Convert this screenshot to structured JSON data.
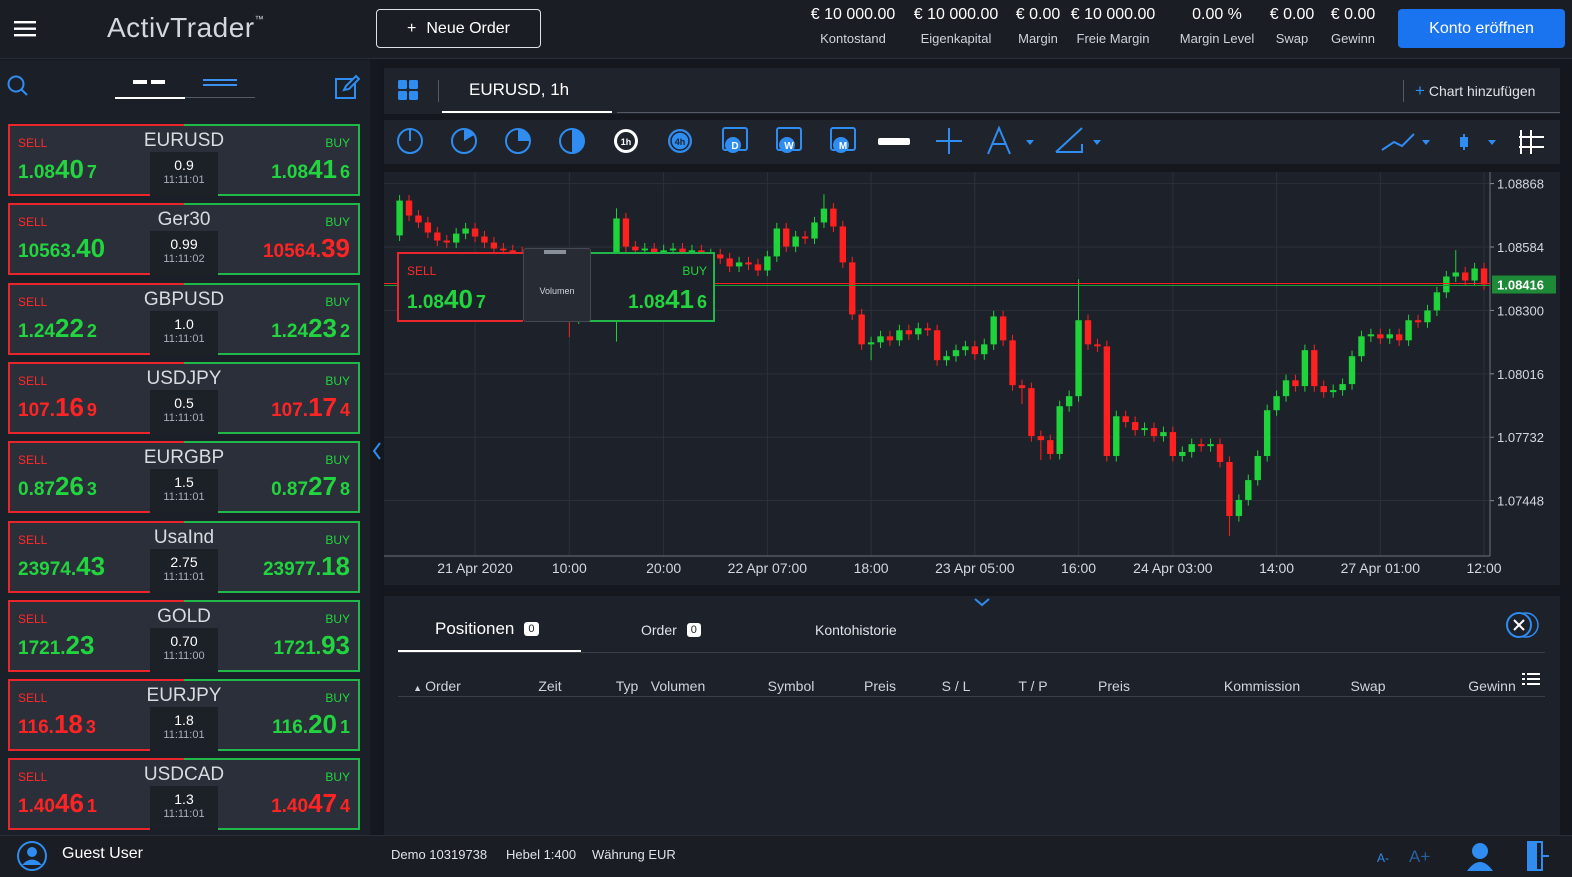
{
  "header": {
    "logo": "ActivTrader",
    "logo_tm": "™",
    "new_order_icon": "+",
    "new_order": "Neue Order",
    "stats": [
      {
        "value": "€ 10 000.00",
        "label": "Kontostand"
      },
      {
        "value": "€ 10 000.00",
        "label": "Eigenkapital"
      },
      {
        "value": "€ 0.00",
        "label": "Margin"
      },
      {
        "value": "€ 10 000.00",
        "label": "Freie Margin"
      },
      {
        "value": "0.00 %",
        "label": "Margin Level"
      },
      {
        "value": "€ 0.00",
        "label": "Swap"
      },
      {
        "value": "€ 0.00",
        "label": "Gewinn"
      }
    ],
    "open_account": "Konto eröffnen"
  },
  "watchlist": {
    "sell_label": "SELL",
    "buy_label": "BUY",
    "colors": {
      "up": "#22d43e",
      "down": "#ff2424"
    },
    "instruments": [
      {
        "symbol": "EURUSD",
        "spread": "0.9",
        "time": "11:11:01",
        "sell": [
          "1.08",
          "40",
          "7"
        ],
        "sell_dir": "up",
        "buy": [
          "1.08",
          "41",
          "6"
        ],
        "buy_dir": "up"
      },
      {
        "symbol": "Ger30",
        "spread": "0.99",
        "time": "11:11:02",
        "sell": [
          "10563.",
          "40"
        ],
        "sell_dir": "up",
        "buy": [
          "10564.",
          "39"
        ],
        "buy_dir": "down"
      },
      {
        "symbol": "GBPUSD",
        "spread": "1.0",
        "time": "11:11:01",
        "sell": [
          "1.24",
          "22",
          "2"
        ],
        "sell_dir": "up",
        "buy": [
          "1.24",
          "23",
          "2"
        ],
        "buy_dir": "up"
      },
      {
        "symbol": "USDJPY",
        "spread": "0.5",
        "time": "11:11:01",
        "sell": [
          "107.",
          "16",
          "9"
        ],
        "sell_dir": "down",
        "buy": [
          "107.",
          "17",
          "4"
        ],
        "buy_dir": "down"
      },
      {
        "symbol": "EURGBP",
        "spread": "1.5",
        "time": "11:11:01",
        "sell": [
          "0.87",
          "26",
          "3"
        ],
        "sell_dir": "up",
        "buy": [
          "0.87",
          "27",
          "8"
        ],
        "buy_dir": "up"
      },
      {
        "symbol": "UsaInd",
        "spread": "2.75",
        "time": "11:11:01",
        "sell": [
          "23974.",
          "43"
        ],
        "sell_dir": "up",
        "buy": [
          "23977.",
          "18"
        ],
        "buy_dir": "up"
      },
      {
        "symbol": "GOLD",
        "spread": "0.70",
        "time": "11:11:00",
        "sell": [
          "1721.",
          "23"
        ],
        "sell_dir": "up",
        "buy": [
          "1721.",
          "93"
        ],
        "buy_dir": "up"
      },
      {
        "symbol": "EURJPY",
        "spread": "1.8",
        "time": "11:11:01",
        "sell": [
          "116.",
          "18",
          "3"
        ],
        "sell_dir": "down",
        "buy": [
          "116.",
          "20",
          "1"
        ],
        "buy_dir": "up"
      },
      {
        "symbol": "USDCAD",
        "spread": "1.3",
        "time": "11:11:01",
        "sell": [
          "1.40",
          "46",
          "1"
        ],
        "sell_dir": "down",
        "buy": [
          "1.40",
          "47",
          "4"
        ],
        "buy_dir": "down"
      }
    ]
  },
  "chart_panel": {
    "tab": "EURUSD, 1h",
    "add_chart_icon": "+",
    "add_chart": "Chart hinzufügen",
    "toolbar_labels": [
      "1h",
      "4h",
      "D",
      "W",
      "M"
    ],
    "tooltip": {
      "sell": "SELL",
      "buy": "BUY",
      "sell_price": [
        "1.08",
        "40",
        "7"
      ],
      "buy_price": [
        "1.08",
        "41",
        "6"
      ],
      "volume": "Volumen"
    }
  },
  "chart_data": {
    "type": "candlestick",
    "up_color": "#1fd33b",
    "down_color": "#ff2020",
    "grid": true,
    "ylim": [
      1.072,
      1.0892
    ],
    "yticks": [
      1.07448,
      1.07732,
      1.08016,
      {
        "value": 1.083,
        "label": "1.08300"
      },
      1.08584,
      1.08868
    ],
    "current_price": 1.08416,
    "categories": [
      null,
      null,
      null,
      null,
      null,
      null,
      null,
      null,
      "21 Apr 2020",
      null,
      null,
      null,
      null,
      null,
      null,
      null,
      null,
      null,
      "10:00",
      null,
      null,
      null,
      null,
      null,
      null,
      null,
      null,
      null,
      "20:00",
      null,
      null,
      null,
      null,
      null,
      null,
      null,
      null,
      null,
      null,
      "22 Apr 07:00",
      null,
      null,
      null,
      null,
      null,
      null,
      null,
      null,
      null,
      null,
      "18:00",
      null,
      null,
      null,
      null,
      null,
      null,
      null,
      null,
      null,
      null,
      "23 Apr 05:00",
      null,
      null,
      null,
      null,
      null,
      null,
      null,
      null,
      null,
      null,
      "16:00",
      null,
      null,
      null,
      null,
      null,
      null,
      null,
      null,
      null,
      "24 Apr 03:00",
      null,
      null,
      null,
      null,
      null,
      null,
      null,
      null,
      null,
      null,
      "14:00",
      null,
      null,
      null,
      null,
      null,
      null,
      null,
      null,
      null,
      null,
      "27 Apr 01:00",
      null,
      null,
      null,
      null,
      null,
      null,
      null,
      null,
      null,
      null,
      "12:00"
    ],
    "ohlc": [
      [
        1.08636,
        1.08817,
        1.08611,
        1.08792
      ],
      [
        1.08792,
        1.08817,
        1.087,
        1.08725
      ],
      [
        1.08725,
        1.0875,
        1.08669,
        1.08694
      ],
      [
        1.08694,
        1.08719,
        1.08624,
        1.08649
      ],
      [
        1.08649,
        1.08674,
        1.08588,
        1.08613
      ],
      [
        1.08613,
        1.08638,
        1.08579,
        1.08604
      ],
      [
        1.08604,
        1.08669,
        1.08579,
        1.08644
      ],
      [
        1.08644,
        1.08692,
        1.08619,
        1.08667
      ],
      [
        1.08667,
        1.08692,
        1.08606,
        1.08631
      ],
      [
        1.08631,
        1.08656,
        1.08579,
        1.08604
      ],
      [
        1.08604,
        1.08629,
        1.08552,
        1.08577
      ],
      [
        1.08577,
        1.08602,
        1.08544,
        1.08569
      ],
      [
        1.08569,
        1.08594,
        1.08535,
        1.0856
      ],
      [
        1.0856,
        1.08585,
        1.0849,
        1.08515
      ],
      [
        1.08515,
        1.0854,
        1.08432,
        1.08457
      ],
      [
        1.08457,
        1.08482,
        1.08365,
        1.0839
      ],
      [
        1.0839,
        1.08415,
        1.0832,
        1.08345
      ],
      [
        1.08345,
        1.0837,
        1.08275,
        1.083
      ],
      [
        1.083,
        1.08325,
        1.0818,
        1.08265
      ],
      [
        1.08265,
        1.08316,
        1.0824,
        1.08291
      ],
      [
        1.08291,
        1.08348,
        1.08266,
        1.08323
      ],
      [
        1.08323,
        1.0837,
        1.08298,
        1.08345
      ],
      [
        1.08345,
        1.08415,
        1.0832,
        1.0839
      ],
      [
        1.0839,
        1.08757,
        1.0816,
        1.08712
      ],
      [
        1.08712,
        1.08737,
        1.08561,
        1.08586
      ],
      [
        1.08586,
        1.08611,
        1.08544,
        1.08569
      ],
      [
        1.08569,
        1.08602,
        1.08544,
        1.08577
      ],
      [
        1.08577,
        1.08602,
        1.08535,
        1.0856
      ],
      [
        1.0856,
        1.08594,
        1.08535,
        1.08569
      ],
      [
        1.08569,
        1.08602,
        1.08544,
        1.08577
      ],
      [
        1.08577,
        1.08602,
        1.08535,
        1.0856
      ],
      [
        1.0856,
        1.08594,
        1.08535,
        1.08569
      ],
      [
        1.08569,
        1.08594,
        1.08517,
        1.08542
      ],
      [
        1.08542,
        1.08576,
        1.08517,
        1.08551
      ],
      [
        1.08551,
        1.08576,
        1.08508,
        1.08533
      ],
      [
        1.08533,
        1.08558,
        1.08472,
        1.08497
      ],
      [
        1.08497,
        1.0854,
        1.08472,
        1.08515
      ],
      [
        1.08515,
        1.0854,
        1.08481,
        1.08506
      ],
      [
        1.08506,
        1.08531,
        1.08454,
        1.08479
      ],
      [
        1.08479,
        1.08567,
        1.08454,
        1.08542
      ],
      [
        1.08542,
        1.08692,
        1.08517,
        1.08667
      ],
      [
        1.08667,
        1.08692,
        1.08561,
        1.08586
      ],
      [
        1.08586,
        1.08656,
        1.08561,
        1.08631
      ],
      [
        1.08631,
        1.08656,
        1.08597,
        1.08622
      ],
      [
        1.08622,
        1.08719,
        1.08597,
        1.08694
      ],
      [
        1.08694,
        1.0882,
        1.08669,
        1.08756
      ],
      [
        1.08756,
        1.08781,
        1.08651,
        1.08676
      ],
      [
        1.08676,
        1.08701,
        1.0849,
        1.08515
      ],
      [
        1.08515,
        1.0854,
        1.08257,
        1.08282
      ],
      [
        1.08282,
        1.08307,
        1.08123,
        1.08148
      ],
      [
        1.08148,
        1.08182,
        1.08077,
        1.08157
      ],
      [
        1.08157,
        1.08209,
        1.08132,
        1.08184
      ],
      [
        1.08184,
        1.08209,
        1.08141,
        1.08166
      ],
      [
        1.08166,
        1.08236,
        1.08141,
        1.08211
      ],
      [
        1.08211,
        1.08236,
        1.08168,
        1.08193
      ],
      [
        1.08193,
        1.08245,
        1.08168,
        1.0822
      ],
      [
        1.0822,
        1.08245,
        1.08186,
        1.08211
      ],
      [
        1.08211,
        1.08236,
        1.08052,
        1.08077
      ],
      [
        1.08077,
        1.0812,
        1.08052,
        1.08095
      ],
      [
        1.08095,
        1.08147,
        1.0807,
        1.08122
      ],
      [
        1.08122,
        1.08164,
        1.08097,
        1.08139
      ],
      [
        1.08139,
        1.08164,
        1.08079,
        1.08104
      ],
      [
        1.08104,
        1.08173,
        1.08079,
        1.08148
      ],
      [
        1.08148,
        1.08298,
        1.08123,
        1.08273
      ],
      [
        1.08273,
        1.08298,
        1.08141,
        1.08166
      ],
      [
        1.08166,
        1.08191,
        1.0794,
        1.07965
      ],
      [
        1.07965,
        1.0799,
        1.0788,
        1.07952
      ],
      [
        1.07952,
        1.07977,
        1.07712,
        1.07737
      ],
      [
        1.07737,
        1.07762,
        1.0763,
        1.07719
      ],
      [
        1.07719,
        1.07744,
        1.07632,
        1.07657
      ],
      [
        1.07657,
        1.07896,
        1.07632,
        1.07871
      ],
      [
        1.07871,
        1.07941,
        1.07846,
        1.07916
      ],
      [
        1.07916,
        1.0844,
        1.07891,
        1.08256
      ],
      [
        1.08256,
        1.08281,
        1.08123,
        1.08148
      ],
      [
        1.08148,
        1.08173,
        1.08114,
        1.08139
      ],
      [
        1.08139,
        1.08164,
        1.07623,
        1.07648
      ],
      [
        1.07648,
        1.07851,
        1.07623,
        1.07826
      ],
      [
        1.07826,
        1.07851,
        1.07775,
        1.078
      ],
      [
        1.078,
        1.07825,
        1.07739,
        1.07764
      ],
      [
        1.07764,
        1.07798,
        1.07739,
        1.07773
      ],
      [
        1.07773,
        1.07798,
        1.07712,
        1.07737
      ],
      [
        1.07737,
        1.0778,
        1.07712,
        1.07755
      ],
      [
        1.07755,
        1.0778,
        1.07623,
        1.07648
      ],
      [
        1.07648,
        1.07691,
        1.07623,
        1.07666
      ],
      [
        1.07666,
        1.07726,
        1.07641,
        1.07701
      ],
      [
        1.07701,
        1.07726,
        1.07667,
        1.07692
      ],
      [
        1.07692,
        1.07726,
        1.07667,
        1.07701
      ],
      [
        1.07701,
        1.07726,
        1.07596,
        1.07621
      ],
      [
        1.07621,
        1.07646,
        1.0729,
        1.07379
      ],
      [
        1.07379,
        1.07476,
        1.07354,
        1.07451
      ],
      [
        1.07451,
        1.07565,
        1.07426,
        1.0754
      ],
      [
        1.0754,
        1.07673,
        1.07515,
        1.07648
      ],
      [
        1.07648,
        1.07878,
        1.07623,
        1.07853
      ],
      [
        1.07853,
        1.07941,
        1.07828,
        1.07916
      ],
      [
        1.07916,
        1.08012,
        1.07891,
        1.07987
      ],
      [
        1.07987,
        1.08012,
        1.07936,
        1.07961
      ],
      [
        1.07961,
        1.08147,
        1.07936,
        1.08122
      ],
      [
        1.08122,
        1.08147,
        1.07936,
        1.07961
      ],
      [
        1.07961,
        1.07986,
        1.07909,
        1.07934
      ],
      [
        1.07934,
        1.07968,
        1.07909,
        1.07943
      ],
      [
        1.07943,
        1.07995,
        1.07918,
        1.0797
      ],
      [
        1.0797,
        1.0812,
        1.07945,
        1.08095
      ],
      [
        1.08095,
        1.08209,
        1.0807,
        1.08184
      ],
      [
        1.08184,
        1.08218,
        1.08159,
        1.08193
      ],
      [
        1.08193,
        1.08218,
        1.0815,
        1.08175
      ],
      [
        1.08175,
        1.08218,
        1.0815,
        1.08193
      ],
      [
        1.08193,
        1.08218,
        1.08141,
        1.08166
      ],
      [
        1.08166,
        1.08281,
        1.08141,
        1.08256
      ],
      [
        1.08256,
        1.08281,
        1.08222,
        1.08247
      ],
      [
        1.08247,
        1.08325,
        1.08222,
        1.083
      ],
      [
        1.083,
        1.08406,
        1.08275,
        1.08381
      ],
      [
        1.08381,
        1.08477,
        1.08356,
        1.08452
      ],
      [
        1.08452,
        1.0857,
        1.08427,
        1.0847
      ],
      [
        1.0847,
        1.08495,
        1.08409,
        1.08434
      ],
      [
        1.08434,
        1.08513,
        1.08409,
        1.08488
      ],
      [
        1.08488,
        1.08513,
        1.08392,
        1.08416
      ]
    ]
  },
  "positions_panel": {
    "tabs": [
      {
        "label": "Positionen",
        "count": "0"
      },
      {
        "label": "Order",
        "count": "0"
      },
      {
        "label": "Kontohistorie"
      }
    ],
    "columns": [
      "Order",
      "Zeit",
      "Typ",
      "Volumen",
      "Symbol",
      "Preis",
      "S / L",
      "T / P",
      "Preis",
      "Kommission",
      "Swap",
      "Gewinn"
    ]
  },
  "footer": {
    "user": "Guest User",
    "account": "Demo 10319738",
    "leverage": "Hebel 1:400",
    "currency": "Währung EUR",
    "font_smaller": "A-",
    "font_larger": "A+"
  }
}
